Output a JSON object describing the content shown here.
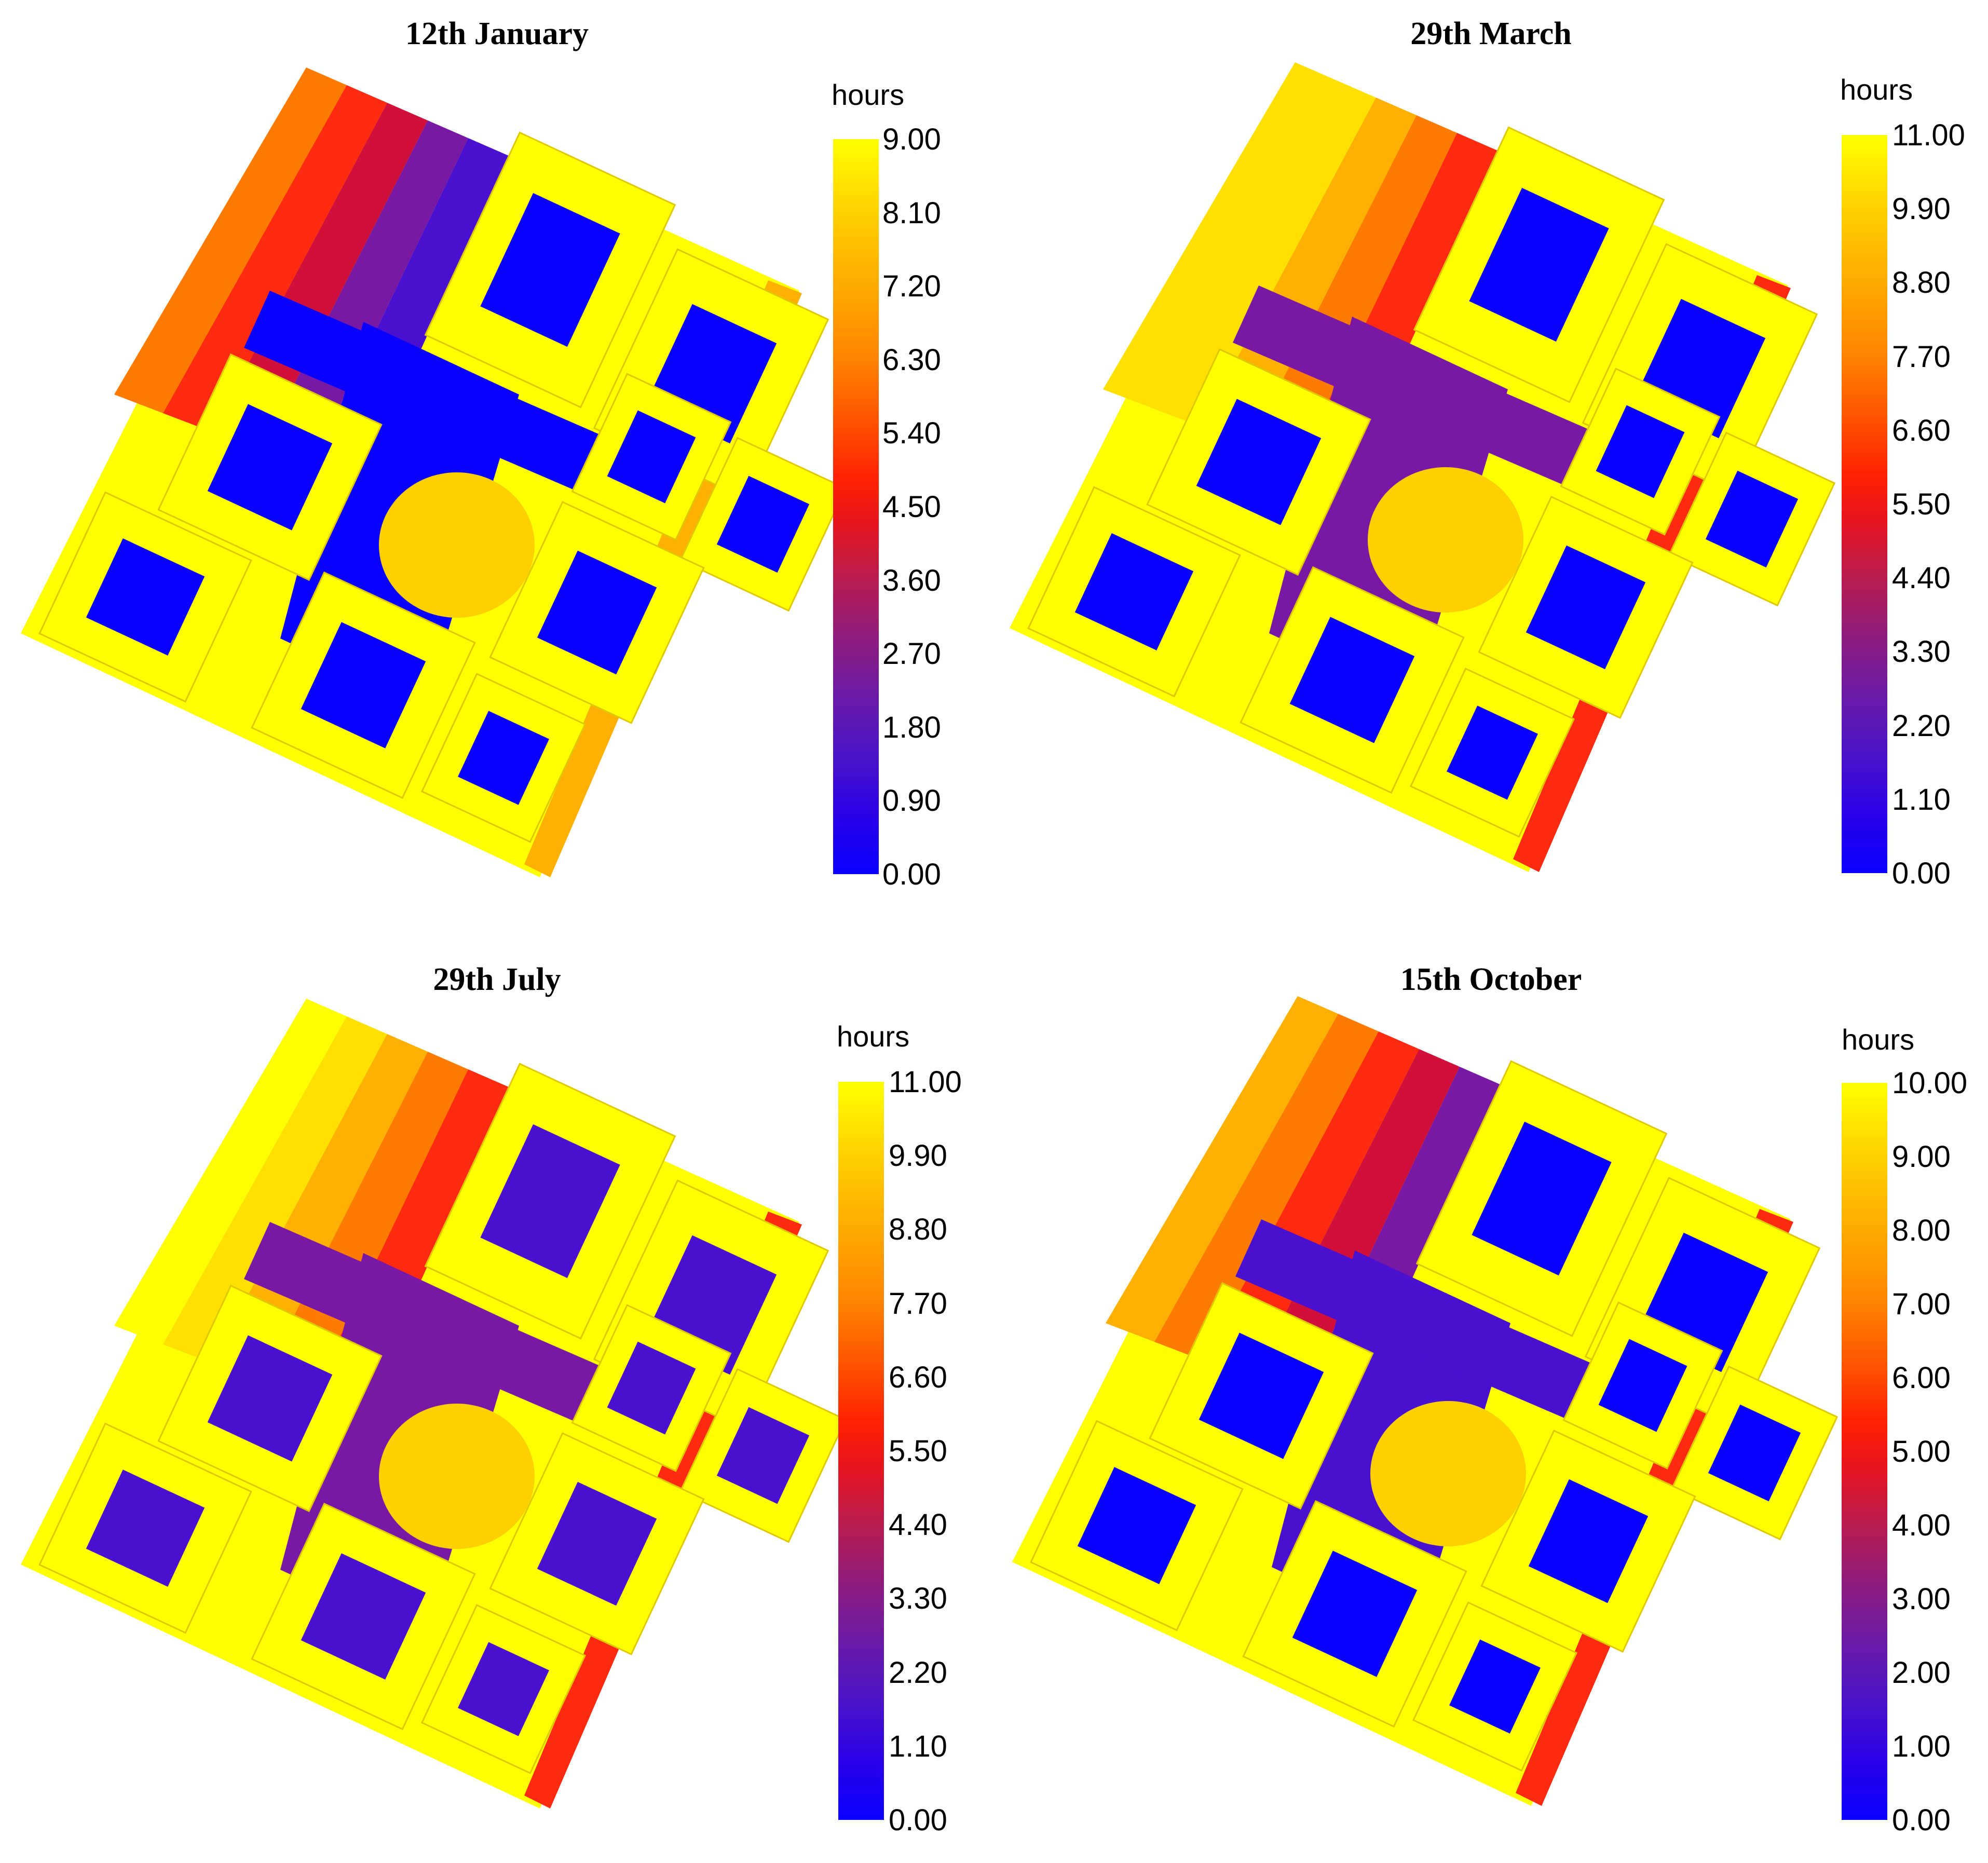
{
  "chart_data": [
    {
      "type": "heatmap",
      "title": "12th January",
      "colorbar": {
        "label": "hours",
        "min": 0.0,
        "max": 9.0,
        "ticks": [
          "9.00",
          "8.10",
          "7.20",
          "6.30",
          "5.40",
          "4.50",
          "3.60",
          "2.70",
          "1.80",
          "0.90",
          "0.00"
        ]
      },
      "colormap": [
        "#0a00ff",
        "#6a1aa8",
        "#e8141c",
        "#ff8800",
        "#ffff00"
      ]
    },
    {
      "type": "heatmap",
      "title": "29th March",
      "colorbar": {
        "label": "hours",
        "min": 0.0,
        "max": 11.0,
        "ticks": [
          "11.00",
          "9.90",
          "8.80",
          "7.70",
          "6.60",
          "5.50",
          "4.40",
          "3.30",
          "2.20",
          "1.10",
          "0.00"
        ]
      },
      "colormap": [
        "#0a00ff",
        "#6a1aa8",
        "#e8141c",
        "#ff8800",
        "#ffff00"
      ]
    },
    {
      "type": "heatmap",
      "title": "29th July",
      "colorbar": {
        "label": "hours",
        "min": 0.0,
        "max": 11.0,
        "ticks": [
          "11.00",
          "9.90",
          "8.80",
          "7.70",
          "6.60",
          "5.50",
          "4.40",
          "3.30",
          "2.20",
          "1.10",
          "0.00"
        ]
      },
      "colormap": [
        "#0a00ff",
        "#6a1aa8",
        "#e8141c",
        "#ff8800",
        "#ffff00"
      ]
    },
    {
      "type": "heatmap",
      "title": "15th October",
      "colorbar": {
        "label": "hours",
        "min": 0.0,
        "max": 10.0,
        "ticks": [
          "10.00",
          "9.00",
          "8.00",
          "7.00",
          "6.00",
          "5.00",
          "4.00",
          "3.00",
          "2.00",
          "1.00",
          "0.00"
        ]
      },
      "colormap": [
        "#0a00ff",
        "#6a1aa8",
        "#e8141c",
        "#ff8800",
        "#ffff00"
      ]
    }
  ]
}
